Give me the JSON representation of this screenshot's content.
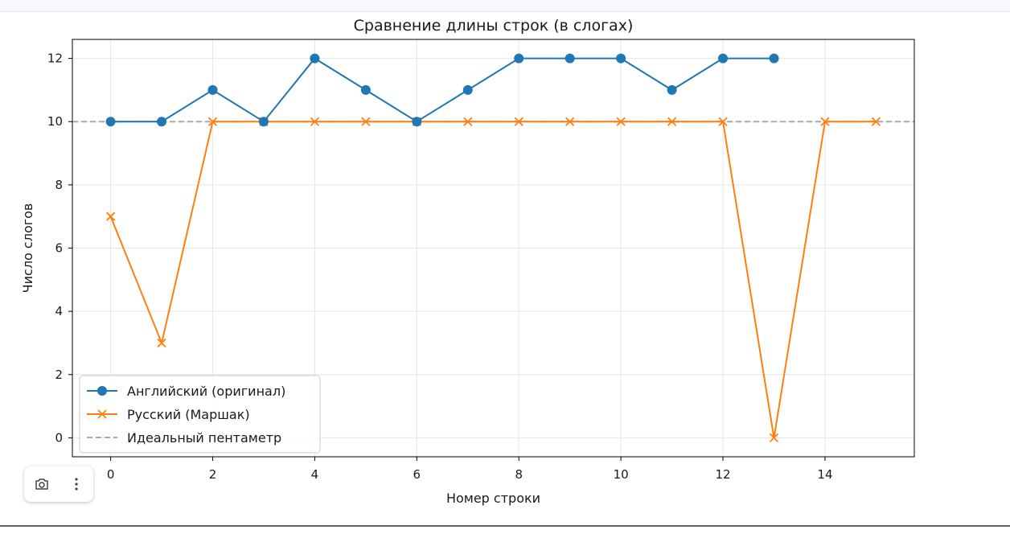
{
  "chart_data": {
    "type": "line",
    "title": "Сравнение длины строк (в слогах)",
    "xlabel": "Номер строки",
    "ylabel": "Число слогов",
    "xlim": [
      -0.75,
      15.75
    ],
    "ylim": [
      -0.6,
      12.6
    ],
    "xticks": [
      0,
      2,
      4,
      6,
      8,
      10,
      12,
      14
    ],
    "yticks": [
      0,
      2,
      4,
      6,
      8,
      10,
      12
    ],
    "grid": true,
    "legend_position": "lower-left",
    "series": [
      {
        "name": "Английский (оригинал)",
        "color": "#1f77b4",
        "marker": "circle",
        "x": [
          0,
          1,
          2,
          3,
          4,
          5,
          6,
          7,
          8,
          9,
          10,
          11,
          12,
          13
        ],
        "values": [
          10,
          10,
          11,
          10,
          12,
          11,
          10,
          11,
          12,
          12,
          12,
          11,
          12,
          12
        ]
      },
      {
        "name": "Русский (Маршак)",
        "color": "#ff7f0e",
        "marker": "x",
        "x": [
          0,
          1,
          2,
          3,
          4,
          5,
          6,
          7,
          8,
          9,
          10,
          11,
          12,
          13,
          14,
          15
        ],
        "values": [
          7,
          3,
          10,
          10,
          10,
          10,
          10,
          10,
          10,
          10,
          10,
          10,
          10,
          0,
          10,
          10
        ]
      }
    ],
    "reference_line": {
      "name": "Идеальный пентаметр",
      "y": 10,
      "color": "#aaaaaa",
      "style": "dashed"
    }
  },
  "toolbar": {
    "camera_icon": "camera-icon",
    "more_icon": "more-vertical-icon"
  }
}
